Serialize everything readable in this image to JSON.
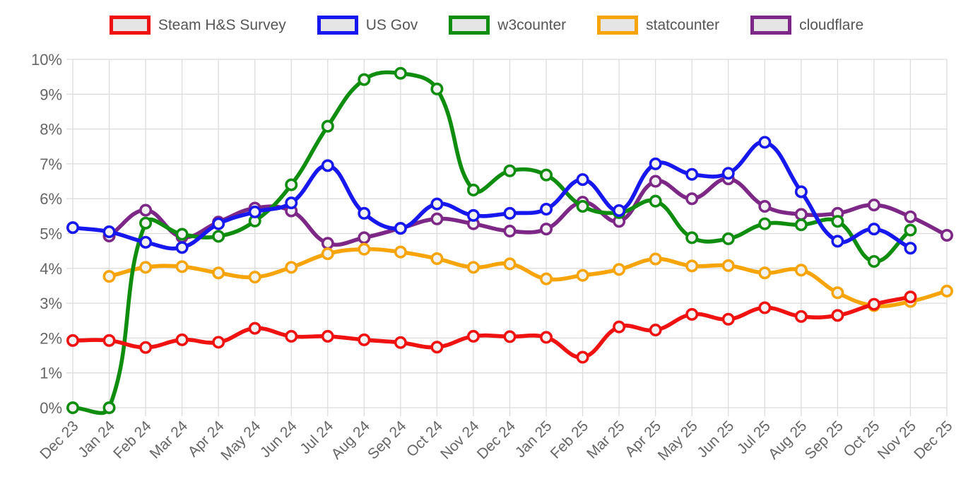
{
  "legend": {
    "position": "top",
    "swatch_fill": "#e5e5e5"
  },
  "axes": {
    "y_tick_labels": [
      "0%",
      "1%",
      "2%",
      "3%",
      "4%",
      "5%",
      "6%",
      "7%",
      "8%",
      "9%",
      "10%"
    ],
    "x_tick_labels": [
      "Dec 23",
      "Jan 24",
      "Feb 24",
      "Mar 24",
      "Apr 24",
      "May 24",
      "Jun 24",
      "Jul 24",
      "Aug 24",
      "Sep 24",
      "Oct 24",
      "Nov 24",
      "Dec 24",
      "Jan 25",
      "Feb 25",
      "Mar 25",
      "Apr 25",
      "May 25",
      "Jun 25",
      "Jul 25",
      "Aug 25",
      "Sep 25",
      "Oct 25",
      "Nov 25",
      "Dec 25"
    ]
  },
  "style_colors": {
    "grid": "#dcdcdc",
    "tick_text": "#666666",
    "marker_fill": "#f2f2f2"
  },
  "chart_data": {
    "type": "line",
    "title": "",
    "xlabel": "",
    "ylabel": "",
    "ylim": [
      0,
      10
    ],
    "y_tick_step": 1,
    "y_format": "percent",
    "grid": true,
    "legend_position": "top",
    "line_tension": 0.4,
    "categories": [
      "Dec 23",
      "Jan 24",
      "Feb 24",
      "Mar 24",
      "Apr 24",
      "May 24",
      "Jun 24",
      "Jul 24",
      "Aug 24",
      "Sep 24",
      "Oct 24",
      "Nov 24",
      "Dec 24",
      "Jan 25",
      "Feb 25",
      "Mar 25",
      "Apr 25",
      "May 25",
      "Jun 25",
      "Jul 25",
      "Aug 25",
      "Sep 25",
      "Oct 25",
      "Nov 25",
      "Dec 25"
    ],
    "series": [
      {
        "name": "Steam H&S Survey",
        "color": "#f01111",
        "values": [
          1.93,
          1.93,
          1.73,
          1.95,
          1.88,
          2.28,
          2.05,
          2.05,
          1.95,
          1.87,
          1.74,
          2.05,
          2.04,
          2.02,
          1.45,
          2.32,
          2.23,
          2.68,
          2.54,
          2.87,
          2.62,
          2.65,
          2.97,
          3.18,
          null
        ]
      },
      {
        "name": "US Gov",
        "color": "#1717ef",
        "values": [
          5.17,
          5.05,
          4.75,
          4.6,
          5.28,
          5.62,
          5.88,
          6.95,
          5.58,
          5.15,
          5.85,
          5.52,
          5.58,
          5.7,
          6.55,
          5.66,
          7.0,
          6.7,
          6.73,
          7.62,
          6.2,
          4.78,
          5.13,
          4.58,
          null
        ]
      },
      {
        "name": "w3counter",
        "color": "#0f8d0f",
        "values": [
          0.0,
          0.0,
          5.3,
          4.98,
          4.92,
          5.36,
          6.4,
          8.08,
          9.42,
          9.6,
          9.15,
          6.25,
          6.8,
          6.68,
          5.78,
          5.6,
          5.93,
          4.88,
          4.85,
          5.28,
          5.25,
          5.35,
          4.2,
          5.1,
          null
        ]
      },
      {
        "name": "statcounter",
        "color": "#f7a409",
        "values": [
          null,
          3.77,
          4.03,
          4.05,
          3.87,
          3.75,
          4.03,
          4.42,
          4.55,
          4.47,
          4.28,
          4.03,
          4.13,
          3.7,
          3.8,
          3.97,
          4.27,
          4.07,
          4.08,
          3.87,
          3.95,
          3.3,
          2.93,
          3.05,
          3.35
        ]
      },
      {
        "name": "cloudflare",
        "color": "#7d2786",
        "values": [
          null,
          4.93,
          5.67,
          4.9,
          5.33,
          5.73,
          5.65,
          4.72,
          4.88,
          5.15,
          5.42,
          5.28,
          5.07,
          5.13,
          5.9,
          5.35,
          6.5,
          6.0,
          6.57,
          5.78,
          5.55,
          5.58,
          5.82,
          5.48,
          4.95
        ]
      }
    ]
  }
}
